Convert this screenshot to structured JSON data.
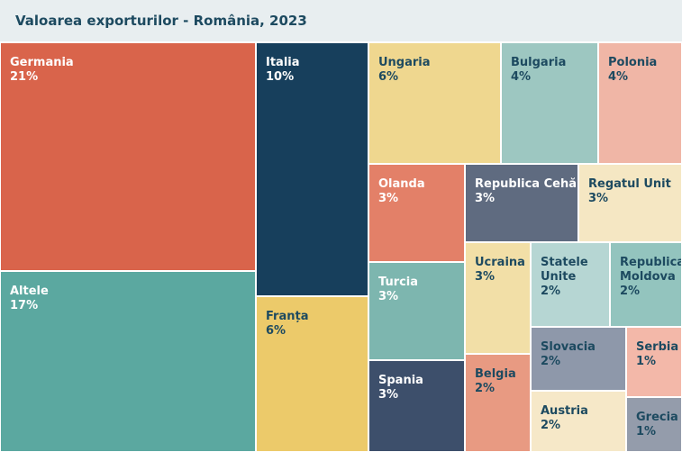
{
  "chart_data": {
    "type": "treemap",
    "title": "Valoarea exporturilor - România, 2023",
    "items": [
      {
        "name": "Germania",
        "value": 21,
        "label": "21%",
        "color": "#d9644b"
      },
      {
        "name": "Altele",
        "value": 17,
        "label": "17%",
        "color": "#5ba8a0"
      },
      {
        "name": "Italia",
        "value": 10,
        "label": "10%",
        "color": "#173f5c"
      },
      {
        "name": "Franța",
        "value": 6,
        "label": "6%",
        "color": "#ecca6a"
      },
      {
        "name": "Ungaria",
        "value": 6,
        "label": "6%",
        "color": "#efd78f"
      },
      {
        "name": "Bulgaria",
        "value": 4,
        "label": "4%",
        "color": "#9dc7c1"
      },
      {
        "name": "Polonia",
        "value": 4,
        "label": "4%",
        "color": "#f0b6a6"
      },
      {
        "name": "Olanda",
        "value": 3,
        "label": "3%",
        "color": "#e38068"
      },
      {
        "name": "Republica Cehă",
        "value": 3,
        "label": "3%",
        "color": "#5f6b80"
      },
      {
        "name": "Regatul Unit",
        "value": 3,
        "label": "3%",
        "color": "#f5e7c3"
      },
      {
        "name": "Turcia",
        "value": 3,
        "label": "3%",
        "color": "#7db6af"
      },
      {
        "name": "Ucraina",
        "value": 3,
        "label": "3%",
        "color": "#f2dfa7"
      },
      {
        "name": "Statele Unite",
        "value": 2,
        "label": "2%",
        "color": "#b6d6d3"
      },
      {
        "name": "Republica Moldova",
        "value": 2,
        "label": "2%",
        "color": "#93c4be"
      },
      {
        "name": "Spania",
        "value": 3,
        "label": "3%",
        "color": "#3d4f6b"
      },
      {
        "name": "Belgia",
        "value": 2,
        "label": "2%",
        "color": "#e89a82"
      },
      {
        "name": "Slovacia",
        "value": 2,
        "label": "2%",
        "color": "#8e98aa"
      },
      {
        "name": "Serbia",
        "value": 1,
        "label": "1%",
        "color": "#f3b8a9"
      },
      {
        "name": "Austria",
        "value": 2,
        "label": "2%",
        "color": "#f6e8c8"
      },
      {
        "name": "Grecia",
        "value": 1,
        "label": "1%",
        "color": "#949cab"
      }
    ]
  }
}
